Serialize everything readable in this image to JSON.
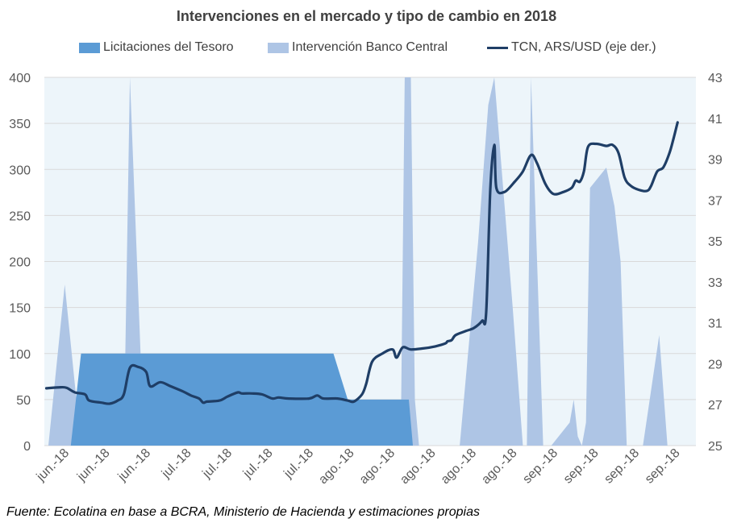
{
  "chart_data": {
    "type": "area",
    "title": "Intervenciones en el mercado y tipo de cambio en 2018",
    "source": "Fuente: Ecolatina en base a BCRA, Ministerio de Hacienda y estimaciones propias",
    "categories": [
      "jun.-18",
      "jun.-18",
      "jun.-18",
      "jul.-18",
      "jul.-18",
      "jul.-18",
      "jul.-18",
      "ago.-18",
      "ago.-18",
      "ago.-18",
      "ago.-18",
      "ago.-18",
      "sep.-18",
      "sep.-18",
      "sep.-18",
      "sep.-18"
    ],
    "x_range": [
      0,
      16
    ],
    "y_left": {
      "range": [
        0,
        400
      ],
      "ticks": [
        0,
        50,
        100,
        150,
        200,
        250,
        300,
        350,
        400
      ]
    },
    "y_right": {
      "range": [
        25,
        43
      ],
      "ticks": [
        25,
        27,
        29,
        31,
        33,
        35,
        37,
        39,
        41,
        43
      ]
    },
    "grid": true,
    "legend_position": "top",
    "series": [
      {
        "name": "Licitaciones del Tesoro",
        "kind": "area",
        "axis": "left",
        "color": "#5b9bd5",
        "points": [
          [
            0.65,
            0
          ],
          [
            0.9,
            100
          ],
          [
            7.1,
            100
          ],
          [
            7.45,
            50
          ],
          [
            8.95,
            50
          ],
          [
            9.05,
            0
          ]
        ]
      },
      {
        "name": "Intervención Banco Central",
        "kind": "area",
        "axis": "left",
        "color": "#aec5e5",
        "points": [
          [
            0.1,
            0
          ],
          [
            0.5,
            175
          ],
          [
            0.9,
            0
          ],
          [
            1.95,
            0
          ],
          [
            2.1,
            400
          ],
          [
            2.45,
            0
          ],
          [
            8.75,
            0
          ],
          [
            8.85,
            400
          ],
          [
            9.0,
            400
          ],
          [
            9.1,
            50
          ],
          [
            9.2,
            0
          ],
          [
            10.2,
            0
          ],
          [
            10.65,
            220
          ],
          [
            10.9,
            370
          ],
          [
            11.05,
            400
          ],
          [
            11.5,
            150
          ],
          [
            11.75,
            0
          ],
          [
            11.85,
            0
          ],
          [
            11.95,
            400
          ],
          [
            12.25,
            0
          ],
          [
            12.45,
            0
          ],
          [
            12.9,
            25
          ],
          [
            13.0,
            50
          ],
          [
            13.1,
            10
          ],
          [
            13.2,
            0
          ],
          [
            13.2,
            0
          ],
          [
            13.3,
            25
          ],
          [
            13.4,
            280
          ],
          [
            13.8,
            302
          ],
          [
            14.0,
            260
          ],
          [
            14.15,
            200
          ],
          [
            14.3,
            0
          ],
          [
            14.7,
            0
          ],
          [
            15.1,
            120
          ],
          [
            15.3,
            0
          ]
        ]
      },
      {
        "name": "TCN, ARS/USD (eje der.)",
        "kind": "line",
        "axis": "right",
        "color": "#1f3e66",
        "points": [
          [
            0.05,
            27.8
          ],
          [
            0.4,
            27.85
          ],
          [
            0.55,
            27.82
          ],
          [
            0.75,
            27.6
          ],
          [
            1.0,
            27.5
          ],
          [
            1.1,
            27.2
          ],
          [
            1.4,
            27.1
          ],
          [
            1.6,
            27.05
          ],
          [
            1.8,
            27.2
          ],
          [
            1.95,
            27.5
          ],
          [
            2.1,
            28.8
          ],
          [
            2.3,
            28.85
          ],
          [
            2.5,
            28.6
          ],
          [
            2.6,
            27.9
          ],
          [
            2.85,
            28.1
          ],
          [
            3.1,
            27.9
          ],
          [
            3.4,
            27.65
          ],
          [
            3.6,
            27.45
          ],
          [
            3.8,
            27.3
          ],
          [
            3.9,
            27.1
          ],
          [
            4.0,
            27.15
          ],
          [
            4.3,
            27.2
          ],
          [
            4.5,
            27.4
          ],
          [
            4.75,
            27.6
          ],
          [
            4.85,
            27.55
          ],
          [
            5.1,
            27.55
          ],
          [
            5.35,
            27.5
          ],
          [
            5.6,
            27.3
          ],
          [
            5.75,
            27.35
          ],
          [
            6.0,
            27.3
          ],
          [
            6.5,
            27.3
          ],
          [
            6.7,
            27.45
          ],
          [
            6.85,
            27.3
          ],
          [
            7.2,
            27.3
          ],
          [
            7.45,
            27.2
          ],
          [
            7.6,
            27.15
          ],
          [
            7.8,
            27.5
          ],
          [
            7.9,
            28.0
          ],
          [
            8.05,
            29.1
          ],
          [
            8.3,
            29.5
          ],
          [
            8.55,
            29.7
          ],
          [
            8.65,
            29.3
          ],
          [
            8.8,
            29.8
          ],
          [
            9.0,
            29.7
          ],
          [
            9.3,
            29.75
          ],
          [
            9.6,
            29.85
          ],
          [
            9.85,
            30.0
          ],
          [
            9.9,
            30.1
          ],
          [
            10.0,
            30.15
          ],
          [
            10.1,
            30.4
          ],
          [
            10.35,
            30.6
          ],
          [
            10.55,
            30.75
          ],
          [
            10.75,
            31.1
          ],
          [
            10.85,
            31.5
          ],
          [
            10.95,
            37.5
          ],
          [
            11.05,
            39.7
          ],
          [
            11.1,
            37.6
          ],
          [
            11.3,
            37.4
          ],
          [
            11.55,
            37.9
          ],
          [
            11.75,
            38.4
          ],
          [
            11.95,
            39.2
          ],
          [
            12.1,
            38.8
          ],
          [
            12.3,
            37.8
          ],
          [
            12.5,
            37.3
          ],
          [
            12.75,
            37.4
          ],
          [
            12.95,
            37.6
          ],
          [
            13.05,
            37.95
          ],
          [
            13.15,
            37.9
          ],
          [
            13.25,
            38.4
          ],
          [
            13.35,
            39.6
          ],
          [
            13.55,
            39.75
          ],
          [
            13.8,
            39.65
          ],
          [
            13.95,
            39.7
          ],
          [
            14.1,
            39.3
          ],
          [
            14.25,
            38.1
          ],
          [
            14.4,
            37.7
          ],
          [
            14.6,
            37.5
          ],
          [
            14.8,
            37.45
          ],
          [
            14.9,
            37.7
          ],
          [
            15.05,
            38.4
          ],
          [
            15.2,
            38.6
          ],
          [
            15.35,
            39.3
          ],
          [
            15.45,
            40.0
          ],
          [
            15.55,
            40.8
          ]
        ]
      }
    ]
  }
}
